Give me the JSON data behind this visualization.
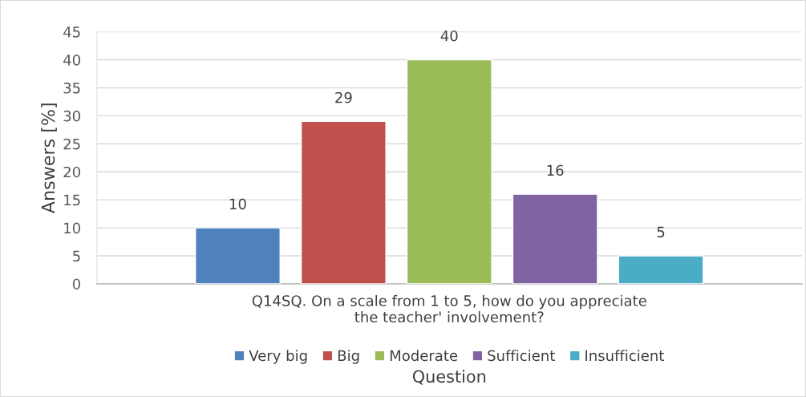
{
  "chart_data": {
    "type": "bar",
    "categories": [
      "Q14SQ. On a scale from 1 to 5, how do you appreciate\nthe teacher' involvement?"
    ],
    "series": [
      {
        "name": "Very big",
        "color": "#4f81bd",
        "values": [
          10
        ]
      },
      {
        "name": "Big",
        "color": "#c0504d",
        "values": [
          29
        ]
      },
      {
        "name": "Moderate",
        "color": "#9bbb59",
        "values": [
          40
        ]
      },
      {
        "name": "Sufficient",
        "color": "#8064a2",
        "values": [
          16
        ]
      },
      {
        "name": "Insufficient",
        "color": "#4bacc6",
        "values": [
          5
        ]
      }
    ],
    "xlabel": "Question",
    "ylabel": "Answers [%]",
    "ylim": [
      0,
      45
    ],
    "yticks": [
      0,
      5,
      10,
      15,
      20,
      25,
      30,
      35,
      40,
      45
    ],
    "grid": "y",
    "legend": "bottom",
    "data_labels": true
  }
}
